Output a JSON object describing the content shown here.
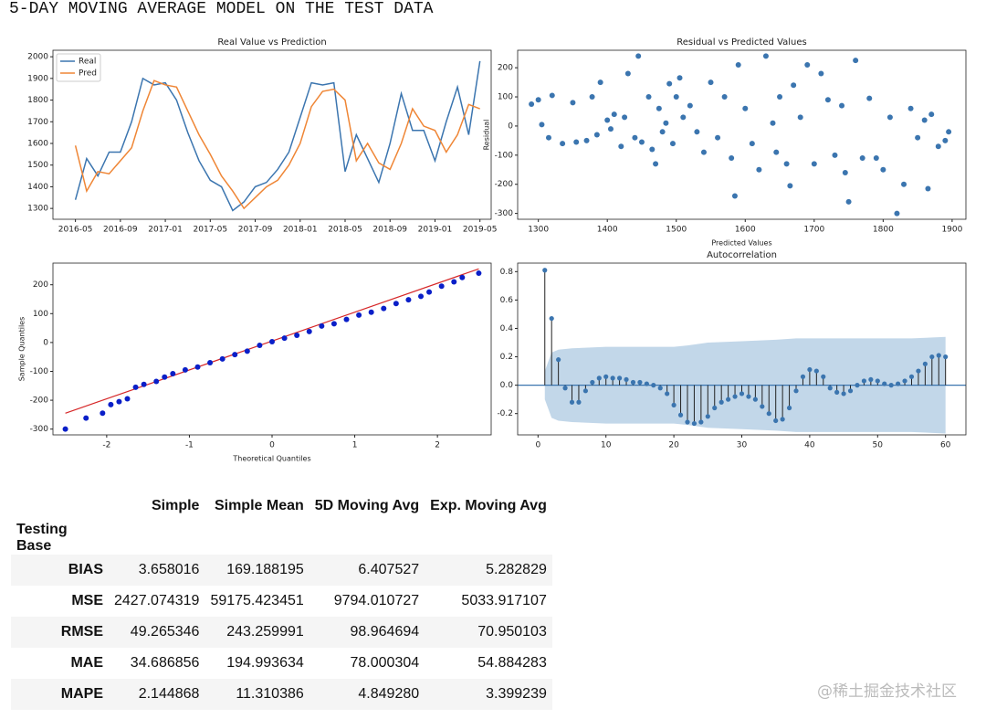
{
  "heading": "5-DAY MOVING AVERAGE MODEL ON THE TEST DATA",
  "watermark": "@稀土掘金技术社区",
  "chart_data": [
    {
      "type": "line",
      "title": "Real Value vs Prediction",
      "legend": "upper left",
      "x": [
        "2016-05",
        "2016-06",
        "2016-07",
        "2016-08",
        "2016-09",
        "2016-10",
        "2016-11",
        "2016-12",
        "2017-01",
        "2017-02",
        "2017-03",
        "2017-04",
        "2017-05",
        "2017-06",
        "2017-07",
        "2017-08",
        "2017-09",
        "2017-10",
        "2017-11",
        "2017-12",
        "2018-01",
        "2018-02",
        "2018-03",
        "2018-04",
        "2018-05",
        "2018-06",
        "2018-07",
        "2018-08",
        "2018-09",
        "2018-10",
        "2018-11",
        "2018-12",
        "2019-01",
        "2019-02",
        "2019-03",
        "2019-04",
        "2019-05"
      ],
      "series": [
        {
          "name": "Real",
          "color": "#3b75af",
          "values": [
            1340,
            1530,
            1450,
            1560,
            1560,
            1700,
            1900,
            1870,
            1880,
            1800,
            1650,
            1520,
            1430,
            1400,
            1290,
            1330,
            1400,
            1420,
            1480,
            1560,
            1720,
            1880,
            1870,
            1880,
            1470,
            1640,
            1530,
            1420,
            1600,
            1830,
            1660,
            1660,
            1520,
            1700,
            1860,
            1640,
            1980
          ]
        },
        {
          "name": "Pred",
          "color": "#ef8636",
          "values": [
            1590,
            1380,
            1470,
            1460,
            1520,
            1580,
            1750,
            1890,
            1870,
            1860,
            1750,
            1640,
            1550,
            1450,
            1380,
            1300,
            1350,
            1400,
            1430,
            1500,
            1600,
            1770,
            1840,
            1850,
            1800,
            1520,
            1600,
            1510,
            1480,
            1600,
            1760,
            1680,
            1660,
            1560,
            1640,
            1780,
            1760
          ]
        }
      ],
      "xlim": [
        "2016-03",
        "2019-06"
      ],
      "xticks": [
        "2016-05",
        "2016-09",
        "2017-01",
        "2017-05",
        "2017-09",
        "2018-01",
        "2018-05",
        "2018-09",
        "2019-01",
        "2019-05"
      ],
      "ylim": [
        1250,
        2030
      ],
      "yticks": [
        1300,
        1400,
        1500,
        1600,
        1700,
        1800,
        1900,
        2000
      ]
    },
    {
      "type": "scatter",
      "title": "Residual vs Predicted Values",
      "x_label": "Predicted Values",
      "y_label": "Residual",
      "color": "#3b75af",
      "x": [
        1290,
        1300,
        1305,
        1315,
        1320,
        1335,
        1350,
        1355,
        1370,
        1378,
        1385,
        1390,
        1400,
        1405,
        1410,
        1420,
        1425,
        1430,
        1440,
        1445,
        1450,
        1460,
        1465,
        1470,
        1475,
        1480,
        1485,
        1490,
        1495,
        1500,
        1505,
        1510,
        1520,
        1530,
        1540,
        1550,
        1560,
        1570,
        1580,
        1585,
        1590,
        1600,
        1610,
        1620,
        1630,
        1640,
        1645,
        1650,
        1660,
        1665,
        1670,
        1680,
        1690,
        1700,
        1710,
        1720,
        1730,
        1740,
        1745,
        1750,
        1760,
        1770,
        1780,
        1790,
        1800,
        1810,
        1820,
        1830,
        1840,
        1850,
        1860,
        1865,
        1870,
        1880,
        1890,
        1895
      ],
      "values": [
        75,
        90,
        5,
        -40,
        105,
        -60,
        80,
        -55,
        -50,
        100,
        -30,
        150,
        20,
        -10,
        40,
        -70,
        30,
        180,
        -40,
        240,
        -55,
        100,
        -80,
        -130,
        60,
        -20,
        10,
        145,
        -60,
        100,
        165,
        30,
        70,
        -20,
        -90,
        150,
        -40,
        100,
        -110,
        -240,
        210,
        60,
        -60,
        -150,
        240,
        10,
        -90,
        100,
        -130,
        -205,
        140,
        30,
        210,
        -130,
        180,
        90,
        -100,
        70,
        -160,
        -260,
        225,
        -110,
        95,
        -110,
        -150,
        30,
        -300,
        -200,
        60,
        -40,
        20,
        -215,
        40,
        -70,
        -50,
        -20
      ],
      "xlim": [
        1270,
        1920
      ],
      "xticks": [
        1300,
        1400,
        1500,
        1600,
        1700,
        1800,
        1900
      ],
      "ylim": [
        -320,
        260
      ],
      "yticks": [
        -300,
        -200,
        -100,
        0,
        100,
        200
      ]
    },
    {
      "type": "scatter",
      "x_label": "Theoretical Quantiles",
      "y_label": "Sample Quantiles",
      "color": "#0a1fc8",
      "x": [
        -2.5,
        -2.25,
        -2.05,
        -1.95,
        -1.85,
        -1.75,
        -1.65,
        -1.55,
        -1.4,
        -1.3,
        -1.2,
        -1.05,
        -0.9,
        -0.75,
        -0.6,
        -0.45,
        -0.3,
        -0.15,
        0,
        0.15,
        0.3,
        0.45,
        0.6,
        0.75,
        0.9,
        1.05,
        1.2,
        1.35,
        1.5,
        1.65,
        1.8,
        1.9,
        2.05,
        2.2,
        2.3,
        2.5
      ],
      "values": [
        -300,
        -262,
        -245,
        -215,
        -205,
        -195,
        -155,
        -145,
        -135,
        -120,
        -108,
        -95,
        -85,
        -70,
        -57,
        -42,
        -30,
        -10,
        3,
        15,
        25,
        38,
        57,
        65,
        80,
        95,
        105,
        118,
        135,
        148,
        160,
        175,
        195,
        210,
        225,
        240
      ],
      "fit_line": {
        "x": [
          -2.5,
          2.5
        ],
        "values": [
          -245,
          255
        ],
        "color": "#d62728"
      },
      "xlim": [
        -2.65,
        2.65
      ],
      "xticks": [
        -2,
        -1,
        0,
        1,
        2
      ],
      "ylim": [
        -320,
        275
      ],
      "yticks": [
        -300,
        -200,
        -100,
        0,
        100,
        200
      ]
    },
    {
      "type": "stem",
      "title": "Autocorrelation",
      "color": "#3b75af",
      "x": [
        1,
        2,
        3,
        4,
        5,
        6,
        7,
        8,
        9,
        10,
        11,
        12,
        13,
        14,
        15,
        16,
        17,
        18,
        19,
        20,
        21,
        22,
        23,
        24,
        25,
        26,
        27,
        28,
        29,
        30,
        31,
        32,
        33,
        34,
        35,
        36,
        37,
        38,
        39,
        40,
        41,
        42,
        43,
        44,
        45,
        46,
        47,
        48,
        49,
        50,
        51,
        52,
        53,
        54,
        55,
        56,
        57,
        58,
        59,
        60
      ],
      "values": [
        0.81,
        0.47,
        0.18,
        -0.02,
        -0.12,
        -0.12,
        -0.04,
        0.02,
        0.05,
        0.06,
        0.05,
        0.05,
        0.04,
        0.02,
        0.02,
        0.01,
        0,
        -0.02,
        -0.06,
        -0.14,
        -0.21,
        -0.26,
        -0.27,
        -0.26,
        -0.22,
        -0.16,
        -0.12,
        -0.1,
        -0.08,
        -0.06,
        -0.08,
        -0.1,
        -0.15,
        -0.2,
        -0.25,
        -0.24,
        -0.16,
        -0.04,
        0.06,
        0.11,
        0.1,
        0.06,
        -0.02,
        -0.05,
        -0.06,
        -0.04,
        0,
        0.03,
        0.04,
        0.03,
        0.01,
        0,
        0.01,
        0.03,
        0.06,
        0.1,
        0.15,
        0.2,
        0.21,
        0.2
      ],
      "band": {
        "x": [
          1,
          2,
          3,
          5,
          10,
          20,
          22,
          25,
          30,
          35,
          38,
          45,
          50,
          55,
          60
        ],
        "upper": [
          0.1,
          0.23,
          0.25,
          0.26,
          0.27,
          0.27,
          0.28,
          0.3,
          0.31,
          0.32,
          0.33,
          0.33,
          0.33,
          0.33,
          0.34
        ],
        "color": "#a8c6e0"
      },
      "xlim": [
        -3,
        63
      ],
      "xticks": [
        0,
        10,
        20,
        30,
        40,
        50,
        60
      ],
      "ylim": [
        -0.35,
        0.86
      ],
      "yticks": [
        -0.2,
        {
          "value": 0,
          "label": "0.0"
        },
        0.2,
        0.4,
        0.6,
        0.8
      ]
    }
  ],
  "table": {
    "columns": [
      "Simple",
      "Simple Mean",
      "5D Moving Avg",
      "Exp. Moving Avg"
    ],
    "index_name": "Testing Base",
    "rows": [
      [
        "BIAS",
        "3.658016",
        "169.188195",
        "6.407527",
        "5.282829"
      ],
      [
        "MSE",
        "2427.074319",
        "59175.423451",
        "9794.010727",
        "5033.917107"
      ],
      [
        "RMSE",
        "49.265346",
        "243.259991",
        "98.964694",
        "70.950103"
      ],
      [
        "MAE",
        "34.686856",
        "194.993634",
        "78.000304",
        "54.884283"
      ],
      [
        "MAPE",
        "2.144868",
        "11.310386",
        "4.849280",
        "3.399239"
      ]
    ]
  }
}
